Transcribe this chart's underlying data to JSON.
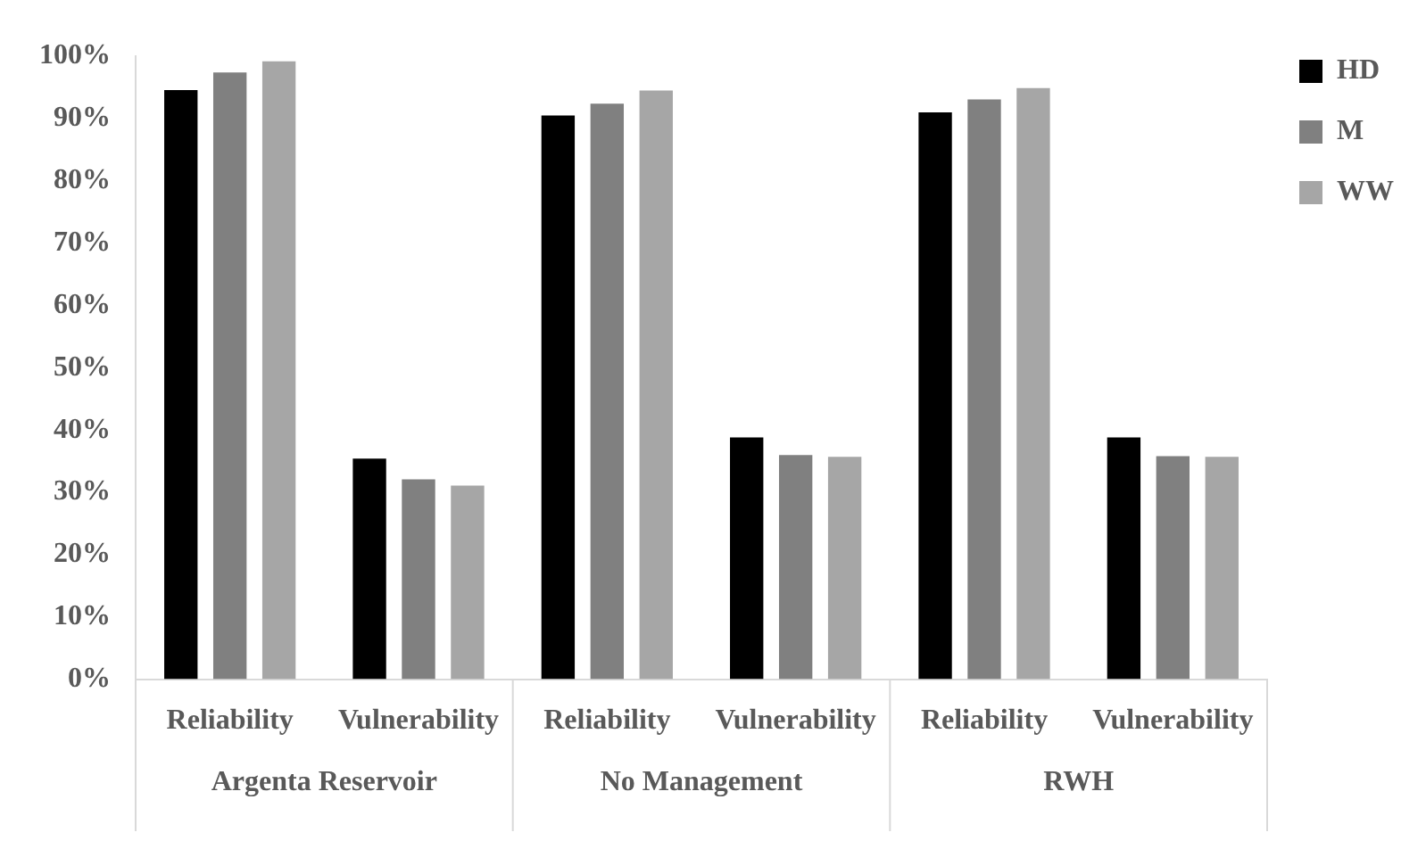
{
  "chart_data": {
    "type": "bar",
    "categories": [
      "Reliability",
      "Vulnerability",
      "Reliability",
      "Vulnerability",
      "Reliability",
      "Vulnerability"
    ],
    "annotations": [
      "Argenta Reservoir",
      "No Management",
      "RWH"
    ],
    "series": [
      {
        "name": "HD",
        "color": "#000000",
        "values": [
          94.6,
          35.4,
          90.5,
          38.8,
          91.0,
          38.8
        ]
      },
      {
        "name": "M",
        "color": "#808080",
        "values": [
          97.4,
          32.1,
          92.4,
          36.0,
          93.1,
          35.8
        ]
      },
      {
        "name": "WW",
        "color": "#a6a6a6",
        "values": [
          99.2,
          31.1,
          94.5,
          35.7,
          94.9,
          35.7
        ]
      }
    ],
    "ylim": [
      0,
      100
    ],
    "yticks": [
      {
        "value": 0,
        "label": "0%"
      },
      {
        "value": 10,
        "label": "10%"
      },
      {
        "value": 20,
        "label": "20%"
      },
      {
        "value": 30,
        "label": "30%"
      },
      {
        "value": 40,
        "label": "40%"
      },
      {
        "value": 50,
        "label": "50%"
      },
      {
        "value": 60,
        "label": "60%"
      },
      {
        "value": 70,
        "label": "70%"
      },
      {
        "value": 80,
        "label": "80%"
      },
      {
        "value": 90,
        "label": "90%"
      },
      {
        "value": 100,
        "label": "100%"
      }
    ],
    "grid": false,
    "legend": "right"
  }
}
